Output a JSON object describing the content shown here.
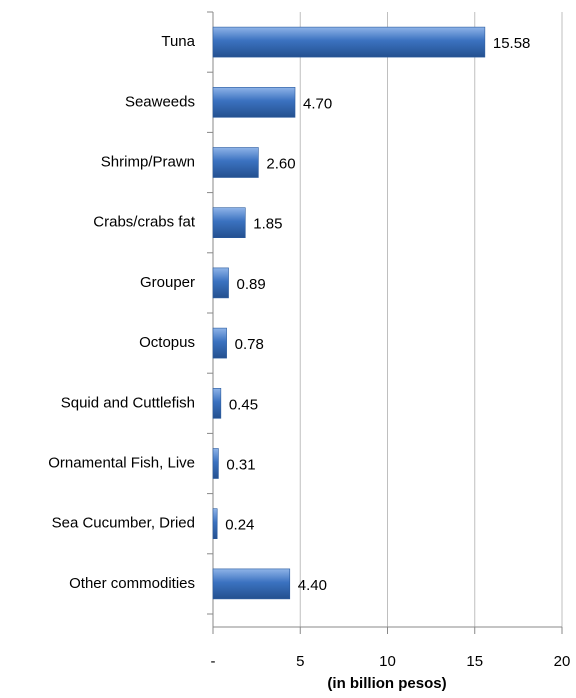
{
  "chart_data": {
    "type": "hbar",
    "categories": [
      "Tuna",
      "Seaweeds",
      "Shrimp/Prawn",
      "Crabs/crabs fat",
      "Grouper",
      "Octopus",
      "Squid and Cuttlefish",
      "Ornamental Fish, Live",
      "Sea Cucumber, Dried",
      "Other commodities"
    ],
    "values": [
      15.58,
      4.7,
      2.6,
      1.85,
      0.89,
      0.78,
      0.45,
      0.31,
      0.24,
      4.4
    ],
    "value_labels": [
      "15.58",
      "4.70",
      "2.60",
      "1.85",
      "0.89",
      "0.78",
      "0.45",
      "0.31",
      "0.24",
      "4.40"
    ],
    "color": "#3b72c0",
    "xlabel": "(in billion pesos)",
    "xlim": [
      0,
      20
    ],
    "xticks": [
      {
        "value": 0,
        "label": "-"
      },
      5,
      10,
      15,
      20
    ],
    "grid": true
  }
}
